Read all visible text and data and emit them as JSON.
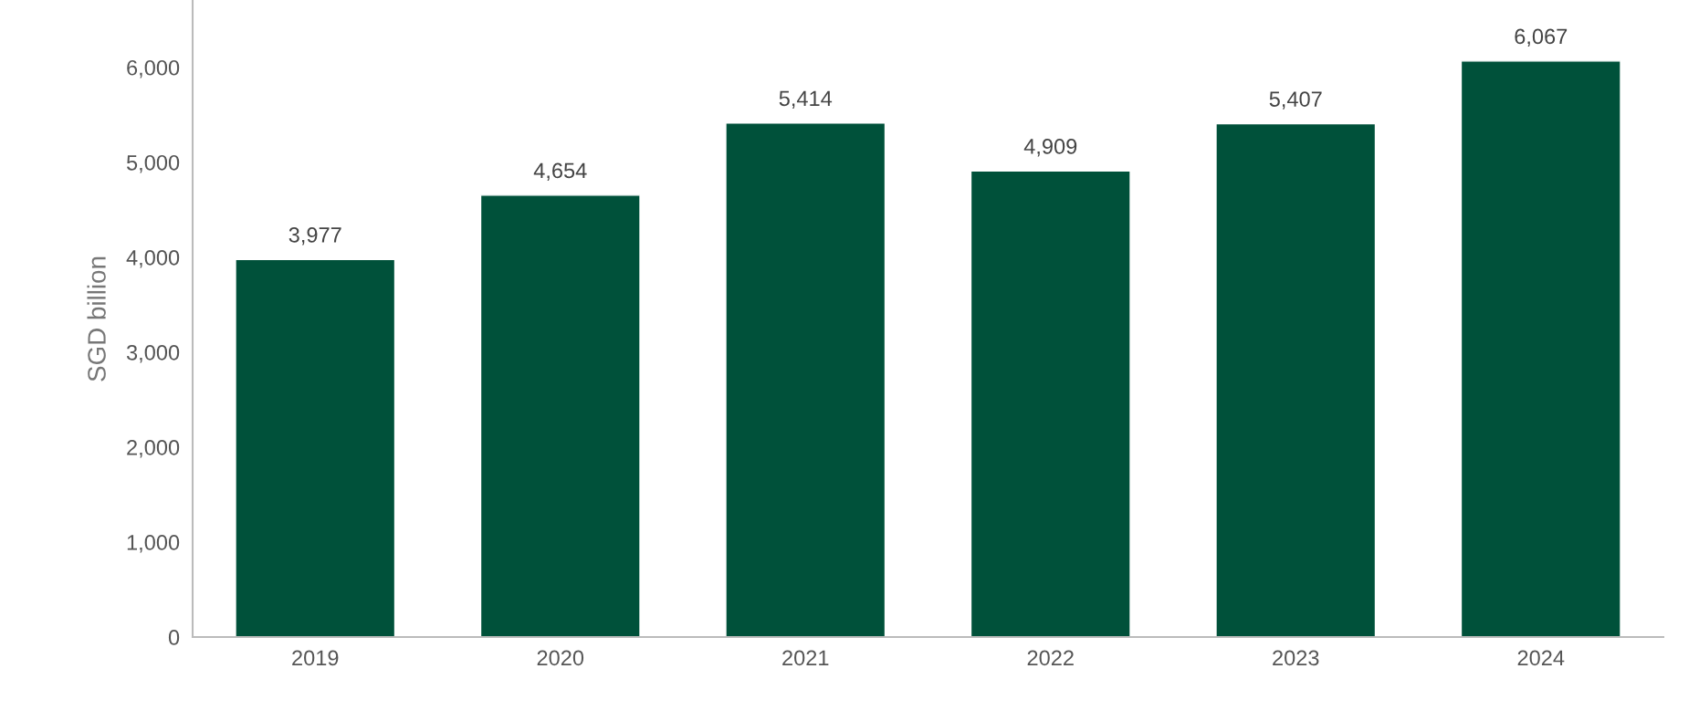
{
  "chart_data": {
    "type": "bar",
    "ylabel": "SGD billion",
    "categories": [
      "2019",
      "2020",
      "2021",
      "2022",
      "2023",
      "2024"
    ],
    "values": [
      3977,
      4654,
      5414,
      4909,
      5407,
      6067
    ],
    "value_labels": [
      "3,977",
      "4,654",
      "5,414",
      "4,909",
      "5,407",
      "6,067"
    ],
    "color": "#00513a",
    "ylim": [
      0,
      6700
    ],
    "yticks": [
      {
        "value": 0,
        "label": "0"
      },
      {
        "value": 1000,
        "label": "1,000"
      },
      {
        "value": 2000,
        "label": "2,000"
      },
      {
        "value": 3000,
        "label": "3,000"
      },
      {
        "value": 4000,
        "label": "4,000"
      },
      {
        "value": 5000,
        "label": "5,000"
      },
      {
        "value": 6000,
        "label": "6,000"
      }
    ],
    "grid": false,
    "legend": false
  }
}
